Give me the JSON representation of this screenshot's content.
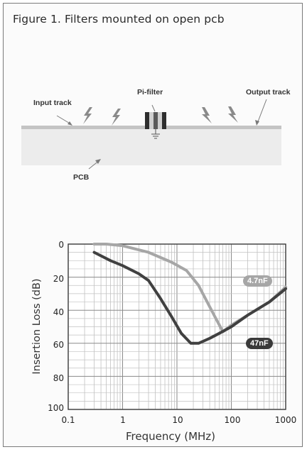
{
  "figure": {
    "title": "Figure 1.  Filters mounted on open pcb"
  },
  "diagram": {
    "labels": {
      "input_track": "Input track",
      "pi_filter": "Pi-filter",
      "output_track": "Output track",
      "pcb": "PCB"
    },
    "colors": {
      "track": "#c7c7c7",
      "pcb": "#ebebeb",
      "zap": "#8a8a8a"
    }
  },
  "chart_data": {
    "type": "line",
    "xlabel": "Frequency (MHz)",
    "ylabel": "Insertion Loss (dB)",
    "x_scale": "log",
    "xlim": [
      0.1,
      1000
    ],
    "ylim": [
      0,
      100
    ],
    "y_inverted": true,
    "grid": true,
    "x_ticks": [
      "0.1",
      "1",
      "10",
      "100",
      "1000"
    ],
    "y_ticks": [
      "0",
      "20",
      "40",
      "60",
      "80",
      "100"
    ],
    "series": [
      {
        "name": "4.7nF",
        "color": "#a6a6a6",
        "points": [
          [
            0.3,
            0
          ],
          [
            0.5,
            0
          ],
          [
            1,
            1
          ],
          [
            3,
            5
          ],
          [
            8,
            11
          ],
          [
            15,
            16
          ],
          [
            25,
            25
          ],
          [
            50,
            44
          ],
          [
            70,
            53
          ],
          [
            100,
            49
          ],
          [
            200,
            43
          ],
          [
            500,
            35
          ],
          [
            1000,
            26
          ]
        ]
      },
      {
        "name": "47nF",
        "color": "#404040",
        "points": [
          [
            0.3,
            5
          ],
          [
            0.6,
            10
          ],
          [
            1,
            13
          ],
          [
            2,
            18
          ],
          [
            3,
            22
          ],
          [
            5,
            33
          ],
          [
            8,
            44
          ],
          [
            12,
            54
          ],
          [
            18,
            60
          ],
          [
            25,
            60
          ],
          [
            40,
            57
          ],
          [
            60,
            54
          ],
          [
            100,
            50
          ],
          [
            200,
            43
          ],
          [
            500,
            35
          ],
          [
            1000,
            27
          ]
        ]
      }
    ]
  }
}
